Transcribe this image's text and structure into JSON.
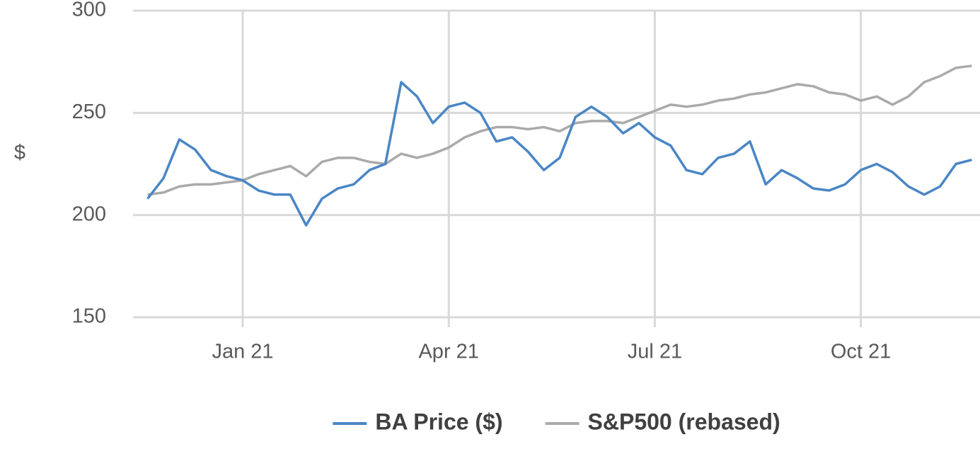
{
  "chart_data": {
    "type": "line",
    "y_label": "$",
    "categories": [
      null,
      null,
      null,
      null,
      null,
      null,
      "Jan 21",
      null,
      null,
      null,
      null,
      null,
      null,
      null,
      null,
      null,
      null,
      null,
      null,
      "Apr 21",
      null,
      null,
      null,
      null,
      null,
      null,
      null,
      null,
      null,
      null,
      null,
      null,
      "Jul 21",
      null,
      null,
      null,
      null,
      null,
      null,
      null,
      null,
      null,
      null,
      null,
      null,
      "Oct 21",
      null,
      null,
      null,
      null,
      null,
      null,
      null
    ],
    "series": [
      {
        "name": "BA Price ($)",
        "color": "#4a86c5",
        "values": [
          208,
          218,
          237,
          232,
          222,
          219,
          217,
          212,
          210,
          210,
          195,
          208,
          213,
          215,
          222,
          225,
          265,
          258,
          245,
          253,
          255,
          250,
          236,
          238,
          231,
          222,
          228,
          248,
          253,
          248,
          240,
          245,
          238,
          234,
          222,
          220,
          228,
          230,
          236,
          215,
          222,
          218,
          213,
          212,
          215,
          222,
          225,
          221,
          214,
          210,
          214,
          225,
          227
        ]
      },
      {
        "name": "S&P500 (rebased)",
        "color": "#aaaaaa",
        "values": [
          210,
          211,
          214,
          215,
          215,
          216,
          217,
          220,
          222,
          224,
          219,
          226,
          228,
          228,
          226,
          225,
          230,
          228,
          230,
          233,
          238,
          241,
          243,
          243,
          242,
          243,
          241,
          245,
          246,
          246,
          245,
          248,
          251,
          254,
          253,
          254,
          256,
          257,
          259,
          260,
          262,
          264,
          263,
          260,
          259,
          256,
          258,
          254,
          258,
          265,
          268,
          272,
          273
        ]
      }
    ],
    "ylim": [
      150,
      300
    ],
    "yticks": [
      150,
      200,
      250,
      300
    ],
    "grid": true,
    "legend": "bottom"
  }
}
